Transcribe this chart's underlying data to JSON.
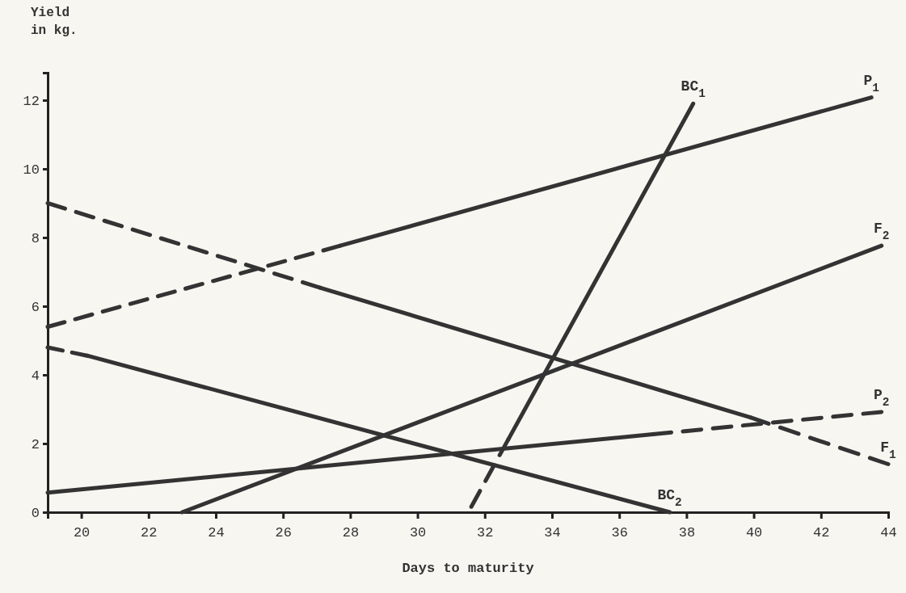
{
  "chart_data": {
    "type": "line",
    "xlabel": "Days to maturity",
    "ylabel": "Yield in kg.",
    "xlim": [
      19,
      44
    ],
    "ylim": [
      0,
      12.8
    ],
    "xticks": [
      20,
      22,
      24,
      26,
      28,
      30,
      32,
      34,
      36,
      38,
      40,
      42,
      44
    ],
    "yticks": [
      0,
      2,
      4,
      6,
      8,
      10,
      12
    ],
    "grid": false,
    "marker": "none",
    "series": [
      {
        "color": "#333333",
        "line_style": "dashed",
        "x": [
          19,
          27.7
        ],
        "values": [
          5.4,
          7.76
        ]
      },
      {
        "name": "P$_{1}$",
        "color": "#333333",
        "line_style": "solid",
        "x": [
          27.7,
          43.5
        ],
        "values": [
          7.76,
          12.08
        ]
      },
      {
        "color": "#333333",
        "line_style": "dashed",
        "x": [
          19,
          27.1
        ],
        "values": [
          9.0,
          6.54
        ]
      },
      {
        "color": "#333333",
        "line_style": "solid",
        "x": [
          27.1,
          39.9
        ],
        "values": [
          6.54,
          2.76
        ]
      },
      {
        "name": "F$_{1}$",
        "color": "#333333",
        "line_style": "dashed",
        "x": [
          39.9,
          44
        ],
        "values": [
          2.76,
          1.4
        ]
      },
      {
        "name": "F$_{2}$",
        "color": "#333333",
        "line_style": "solid",
        "x": [
          23.0,
          43.8
        ],
        "values": [
          0,
          7.76
        ]
      },
      {
        "color": "#333333",
        "line_style": "solid",
        "x": [
          19,
          37.0
        ],
        "values": [
          0.57,
          2.27
        ]
      },
      {
        "name": "P$_{2}$",
        "color": "#333333",
        "line_style": "dashed",
        "x": [
          37.0,
          43.8
        ],
        "values": [
          2.27,
          2.92
        ]
      },
      {
        "color": "#333333",
        "line_style": "dashed",
        "x": [
          31.6,
          32.7
        ],
        "values": [
          0.16,
          2.12
        ]
      },
      {
        "name": "BC$_{1}$",
        "color": "#333333",
        "line_style": "solid",
        "x": [
          32.7,
          38.2
        ],
        "values": [
          2.12,
          11.9
        ]
      },
      {
        "color": "#333333",
        "line_style": "dashed",
        "x": [
          19,
          20.17
        ],
        "values": [
          4.8,
          4.56
        ]
      },
      {
        "name": "BC$_{2}$",
        "color": "#333333",
        "line_style": "solid",
        "x": [
          20.17,
          37.5
        ],
        "values": [
          4.56,
          0
        ]
      }
    ]
  }
}
